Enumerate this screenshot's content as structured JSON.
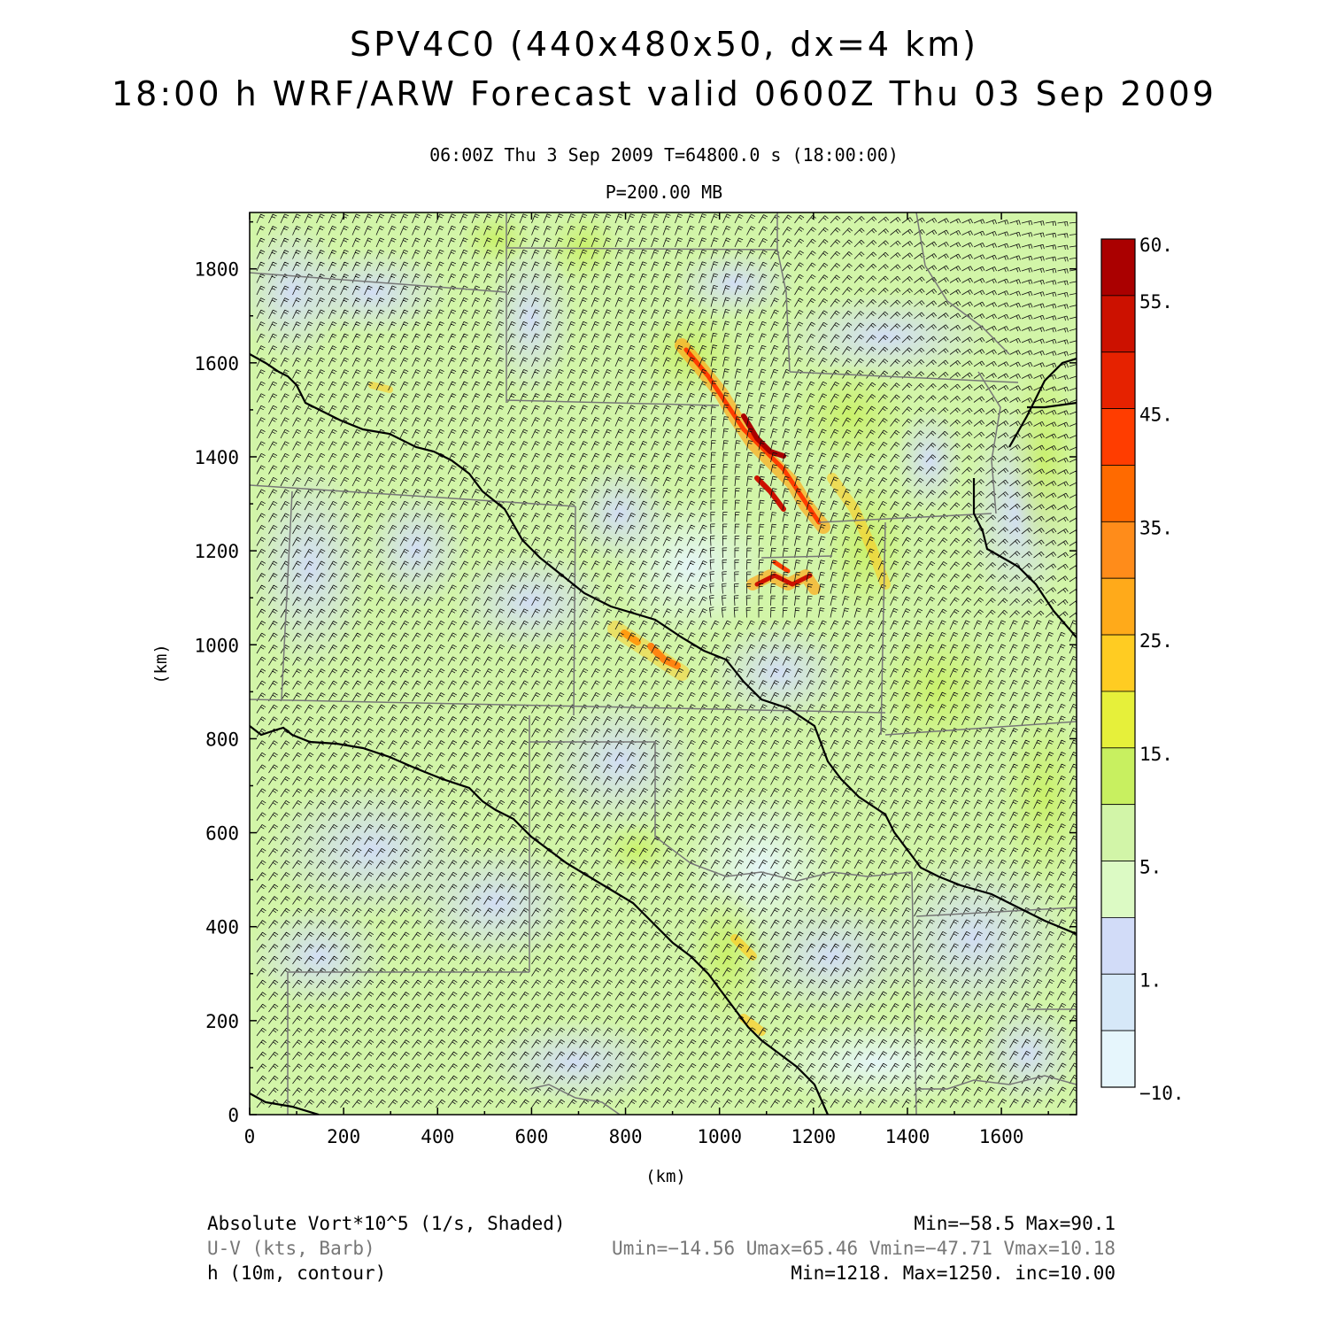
{
  "header": {
    "title_line1": "SPV4C0 (440x480x50, dx=4 km)",
    "title_line2": "18:00 h WRF/ARW Forecast valid 0600Z Thu 03 Sep 2009",
    "time_info": "06:00Z Thu   3 Sep 2009     T=64800.0 s (18:00:00)",
    "level": "P=200.00 MB"
  },
  "map": {
    "x_axis": {
      "label": "(km)",
      "ticks": [
        "0",
        "200",
        "400",
        "600",
        "800",
        "1000",
        "1200",
        "1400",
        "1600"
      ],
      "range_km": [
        0,
        1760
      ]
    },
    "y_axis": {
      "label": "(km)",
      "ticks": [
        "0",
        "200",
        "400",
        "600",
        "800",
        "1000",
        "1200",
        "1400",
        "1600",
        "1800"
      ],
      "range_km": [
        0,
        1920
      ]
    },
    "background_color": "#d2f5a8",
    "fields": [
      "absolute vorticity (shaded)",
      "wind barbs",
      "state boundaries",
      "height contours"
    ]
  },
  "colorbar": {
    "labels": [
      "60.",
      "55.",
      "45.",
      "35.",
      "25.",
      "15.",
      "5.",
      "1.",
      "−10."
    ],
    "colors": [
      "#aa0000",
      "#cc1100",
      "#e62200",
      "#ff3d00",
      "#ff6a00",
      "#ff8c1a",
      "#ffaa1a",
      "#ffcc22",
      "#e6f03a",
      "#c8f060",
      "#d2f5a8",
      "#dcfac4",
      "#d2dcf8",
      "#d6e8f8",
      "#e6f6fc"
    ]
  },
  "footer": {
    "line1_left": "Absolute Vort*10^5 (1/s, Shaded)",
    "line1_right": "Min=−58.5 Max=90.1",
    "line2_left": "U-V (kts, Barb)",
    "line2_right": "Umin=−14.56 Umax=65.46 Vmin=−47.71 Vmax=10.18",
    "line3_left": "h (10m, contour)",
    "line3_right": "Min=1218. Max=1250. inc=10.00"
  }
}
